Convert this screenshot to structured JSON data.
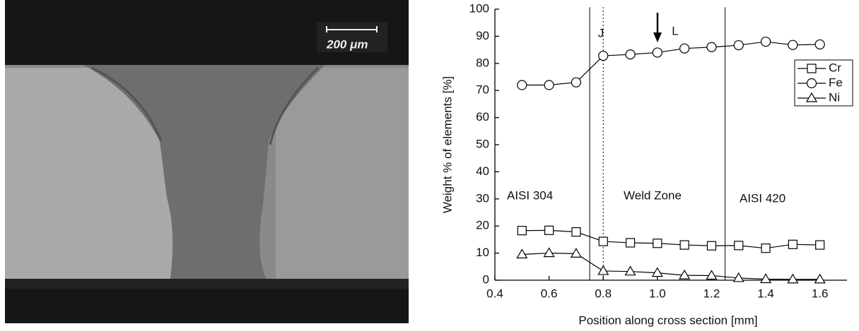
{
  "micrograph": {
    "scale_bar": "200 μm"
  },
  "chart_data": {
    "type": "line",
    "x_label": "Position along cross section [mm]",
    "y_label": "Weight % of elements [%]",
    "x": [
      0.5,
      0.6,
      0.7,
      0.8,
      0.9,
      1.0,
      1.1,
      1.2,
      1.3,
      1.4,
      1.5,
      1.6
    ],
    "series": [
      {
        "name": "Cr",
        "marker": "square",
        "color": "#000000",
        "values": [
          18.3,
          18.4,
          17.8,
          14.3,
          13.8,
          13.6,
          13,
          12.7,
          12.8,
          11.8,
          13.2,
          13
        ]
      },
      {
        "name": "Fe",
        "marker": "circle",
        "color": "#000000",
        "values": [
          72,
          72,
          73,
          82.8,
          83.3,
          84,
          85.5,
          86,
          86.7,
          88,
          86.8,
          87
        ]
      },
      {
        "name": "Ni",
        "marker": "triangle",
        "color": "#000000",
        "values": [
          9.5,
          10,
          9.8,
          3.4,
          3.2,
          2.7,
          1.8,
          1.7,
          0.8,
          0.4,
          0.3,
          0.3
        ]
      }
    ],
    "xlim": [
      0.4,
      1.7
    ],
    "xticks": [
      0.4,
      0.6,
      0.8,
      {
        "value": 1,
        "label": "1.0"
      },
      1.2,
      1.4,
      1.6
    ],
    "ylim": [
      0,
      100
    ],
    "yticks": [
      0,
      10,
      20,
      30,
      40,
      50,
      60,
      70,
      80,
      90,
      100
    ],
    "reference_lines": [
      {
        "x": 0.75,
        "dashed": false
      },
      {
        "x": 0.8,
        "dashed": true
      },
      {
        "x": 1.25,
        "dashed": false
      }
    ],
    "annotations": [
      "J",
      "L",
      "AISI 304",
      "Weld Zone",
      "AISI 420"
    ],
    "legend": "upper right",
    "grid": false
  }
}
